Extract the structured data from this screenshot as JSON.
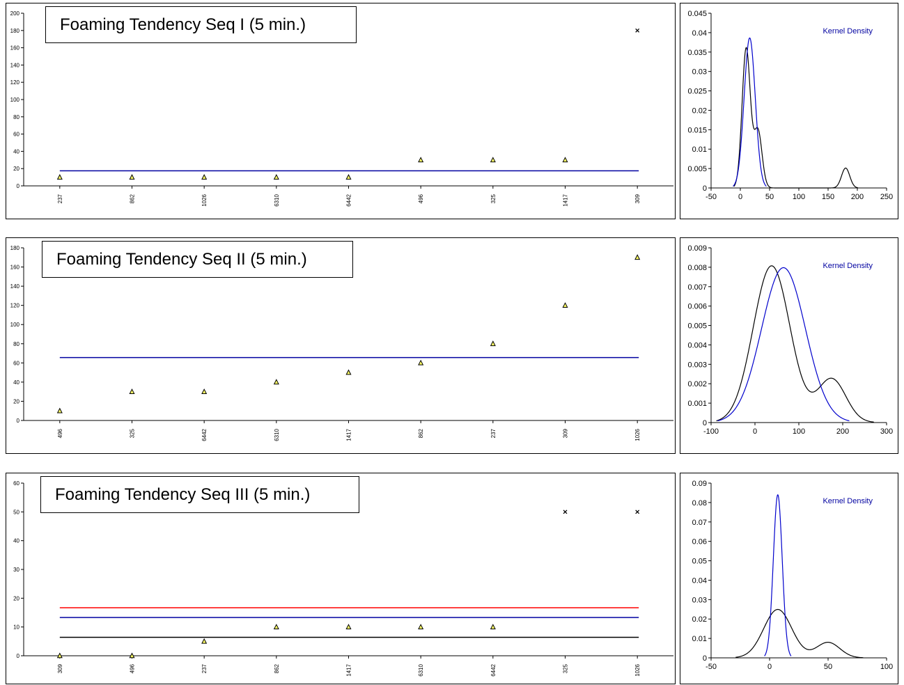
{
  "chart_data": [
    {
      "type": "scatter",
      "title": "Foaming Tendency Seq I (5 min.)",
      "categories": [
        "237",
        "862",
        "1026",
        "6310",
        "6442",
        "496",
        "325",
        "1417",
        "309"
      ],
      "values": [
        10,
        10,
        10,
        10,
        10,
        30,
        30,
        30,
        180
      ],
      "markers": [
        "triangle",
        "triangle",
        "triangle",
        "triangle",
        "triangle",
        "triangle",
        "triangle",
        "triangle",
        "x"
      ],
      "ylim": [
        0,
        200
      ],
      "yticks": [
        0,
        20,
        40,
        60,
        80,
        100,
        120,
        140,
        160,
        180,
        200
      ],
      "reference_lines": [
        {
          "value": 17.4,
          "color": "#0000a0"
        }
      ],
      "grid": false
    },
    {
      "type": "line",
      "legend": "Kernel Density",
      "xlim": [
        -50,
        250
      ],
      "ylim": [
        0,
        0.045
      ],
      "xticks": [
        -50,
        0,
        50,
        100,
        150,
        200,
        250
      ],
      "yticks": [
        "0",
        "0.005",
        "0.01",
        "0.015",
        "0.02",
        "0.025",
        "0.03",
        "0.035",
        "0.04",
        "0.045"
      ],
      "series": [
        {
          "color": "#000000",
          "components": [
            {
              "mu": 10,
              "sigma": 7,
              "w": 0.63
            },
            {
              "mu": 30,
              "sigma": 7,
              "w": 0.26
            },
            {
              "mu": 180,
              "sigma": 7,
              "w": 0.09
            }
          ]
        },
        {
          "color": "#0000cc",
          "components": [
            {
              "mu": 16,
              "sigma": 9.5,
              "w": 0.92
            }
          ]
        }
      ]
    },
    {
      "type": "scatter",
      "title": "Foaming Tendency Seq II (5 min.)",
      "categories": [
        "496",
        "325",
        "6442",
        "6310",
        "1417",
        "862",
        "237",
        "309",
        "1026"
      ],
      "values": [
        10,
        30,
        30,
        40,
        50,
        60,
        80,
        120,
        170
      ],
      "markers": [
        "triangle",
        "triangle",
        "triangle",
        "triangle",
        "triangle",
        "triangle",
        "triangle",
        "triangle",
        "triangle"
      ],
      "ylim": [
        0,
        180
      ],
      "yticks": [
        0,
        20,
        40,
        60,
        80,
        100,
        120,
        140,
        160,
        180
      ],
      "reference_lines": [
        {
          "value": 65.6,
          "color": "#0000a0"
        }
      ],
      "grid": false
    },
    {
      "type": "line",
      "legend": "Kernel Density",
      "xlim": [
        -100,
        300
      ],
      "ylim": [
        0,
        0.009
      ],
      "xticks": [
        -100,
        0,
        100,
        200,
        300
      ],
      "yticks": [
        "0",
        "0.001",
        "0.002",
        "0.003",
        "0.004",
        "0.005",
        "0.006",
        "0.007",
        "0.008",
        "0.009"
      ],
      "series": [
        {
          "color": "#000000",
          "components": [
            {
              "mu": 38,
              "sigma": 42,
              "w": 0.85
            },
            {
              "mu": 175,
              "sigma": 32,
              "w": 0.18
            }
          ]
        },
        {
          "color": "#0000cc",
          "components": [
            {
              "mu": 65,
              "sigma": 50,
              "w": 1
            }
          ]
        }
      ]
    },
    {
      "type": "scatter",
      "title": "Foaming Tendency Seq III (5 min.)",
      "categories": [
        "309",
        "496",
        "237",
        "862",
        "1417",
        "6310",
        "6442",
        "325",
        "1026"
      ],
      "values": [
        0,
        0,
        5,
        10,
        10,
        10,
        10,
        50,
        50
      ],
      "markers": [
        "triangle",
        "triangle",
        "triangle",
        "triangle",
        "triangle",
        "triangle",
        "triangle",
        "x",
        "x"
      ],
      "ylim": [
        0,
        60
      ],
      "yticks": [
        0,
        10,
        20,
        30,
        40,
        50,
        60
      ],
      "reference_lines": [
        {
          "value": 16.7,
          "color": "#ff0000"
        },
        {
          "value": 13.3,
          "color": "#0000a0"
        },
        {
          "value": 6.4,
          "color": "#000000"
        }
      ],
      "grid": false
    },
    {
      "type": "line",
      "legend": "Kernel Density",
      "xlim": [
        -50,
        100
      ],
      "ylim": [
        0,
        0.09
      ],
      "xticks": [
        -50,
        0,
        50,
        100
      ],
      "yticks": [
        "0",
        "0.01",
        "0.02",
        "0.03",
        "0.04",
        "0.05",
        "0.06",
        "0.07",
        "0.08",
        "0.09"
      ],
      "series": [
        {
          "color": "#000000",
          "components": [
            {
              "mu": 7,
              "sigma": 12,
              "w": 0.75
            },
            {
              "mu": 50,
              "sigma": 10,
              "w": 0.2
            }
          ]
        },
        {
          "color": "#0000cc",
          "components": [
            {
              "mu": 7,
              "sigma": 3.8,
              "w": 0.8
            }
          ]
        }
      ]
    }
  ]
}
